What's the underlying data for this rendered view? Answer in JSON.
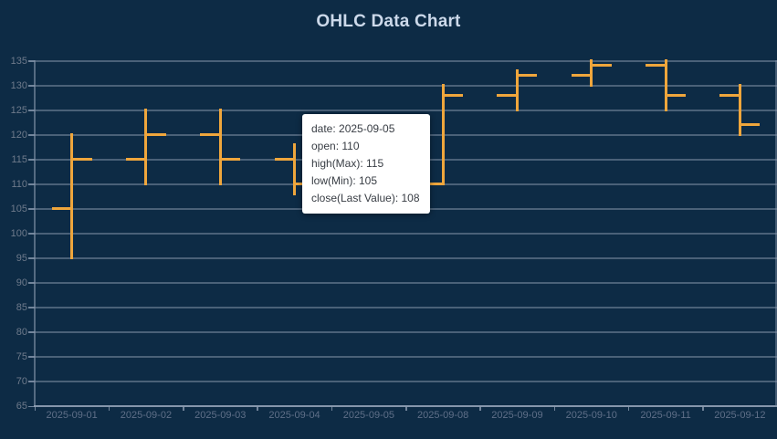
{
  "title": "OHLC Data Chart",
  "colors": {
    "background": "#0d2b45",
    "bar_accent": "#efa63c",
    "gridline": "#7d8ea3",
    "title_text": "#ccd9ea",
    "y_label_text": "#6e7a8b",
    "x_label_text": "#5f6f88",
    "tooltip_bg": "#ffffff",
    "tooltip_text": "#383d44"
  },
  "chart_data": {
    "type": "ohlc",
    "title": "OHLC Data Chart",
    "categories": [
      "2025-09-01",
      "2025-09-02",
      "2025-09-03",
      "2025-09-04",
      "2025-09-05",
      "2025-09-08",
      "2025-09-09",
      "2025-09-10",
      "2025-09-11",
      "2025-09-12"
    ],
    "series": [
      {
        "name": "OHLC",
        "values": [
          {
            "date": "2025-09-01",
            "open": 105,
            "high": 120,
            "low": 95,
            "close": 115
          },
          {
            "date": "2025-09-02",
            "open": 115,
            "high": 125,
            "low": 110,
            "close": 120
          },
          {
            "date": "2025-09-03",
            "open": 120,
            "high": 125,
            "low": 110,
            "close": 115
          },
          {
            "date": "2025-09-04",
            "open": 115,
            "high": 118,
            "low": 108,
            "close": 110
          },
          {
            "date": "2025-09-05",
            "open": 110,
            "high": 115,
            "low": 105,
            "close": 108
          },
          {
            "date": "2025-09-08",
            "open": 110,
            "high": 130,
            "low": 110,
            "close": 128
          },
          {
            "date": "2025-09-09",
            "open": 128,
            "high": 133,
            "low": 125,
            "close": 132
          },
          {
            "date": "2025-09-10",
            "open": 132,
            "high": 135,
            "low": 130,
            "close": 134
          },
          {
            "date": "2025-09-11",
            "open": 134,
            "high": 135,
            "low": 125,
            "close": 128
          },
          {
            "date": "2025-09-12",
            "open": 128,
            "high": 130,
            "low": 120,
            "close": 122
          }
        ]
      }
    ],
    "ylim": [
      65,
      135
    ],
    "ytick_step": 5,
    "grid": "on",
    "legend": "none",
    "open_tick_side": "left",
    "close_tick_side": "right"
  },
  "tooltip": {
    "lines": [
      "date: 2025-09-05",
      "open: 110",
      "high(Max): 115",
      "low(Min): 105",
      "close(Last Value): 108"
    ]
  }
}
